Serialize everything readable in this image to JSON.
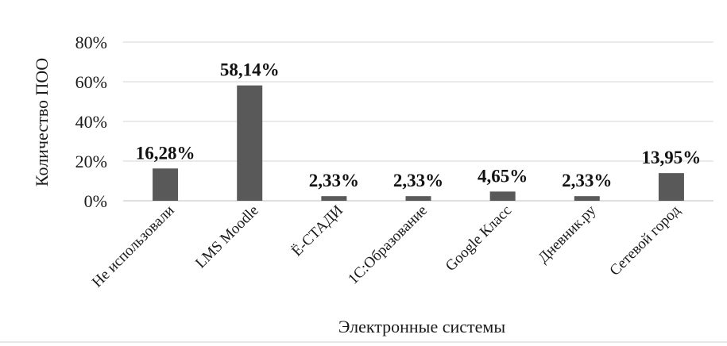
{
  "chart_data": {
    "type": "bar",
    "title": "",
    "xlabel": "Электронные системы",
    "ylabel": "Количество ПОО",
    "ylim": [
      0,
      80
    ],
    "yticks": [
      "0%",
      "20%",
      "40%",
      "60%",
      "80%"
    ],
    "yticks_values": [
      0,
      20,
      40,
      60,
      80
    ],
    "grid": true,
    "legend": "none",
    "bar_color": "#595959",
    "categories": [
      "Не использовали",
      "LMS Moodle",
      "Ё-СТАДИ",
      "1С:Образование",
      "Google Класс",
      "Дневник.ру",
      "Сетевой город"
    ],
    "values": [
      16.28,
      58.14,
      2.33,
      2.33,
      4.65,
      2.33,
      13.95
    ],
    "data_labels": [
      "16,28%",
      "58,14%",
      "2,33%",
      "2,33%",
      "4,65%",
      "2,33%",
      "13,95%"
    ]
  }
}
